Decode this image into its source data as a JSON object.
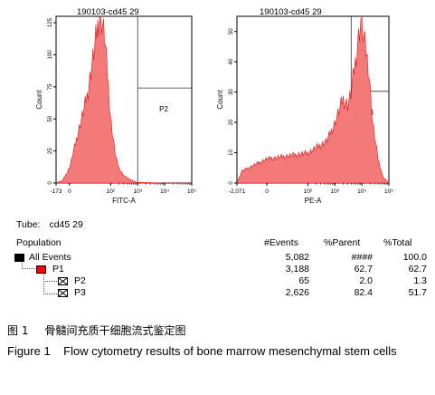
{
  "chart_data": [
    {
      "type": "area",
      "title": "190103-cd45 29",
      "xlabel": "FITC-A",
      "ylabel": "Count",
      "xlim": [
        -173,
        100000
      ],
      "x_scale": "biexponential",
      "ylim": [
        0,
        130
      ],
      "x_ticks": [
        "-173",
        "0",
        "10²",
        "10³",
        "10⁴",
        "10⁵"
      ],
      "y_ticks": [
        "0",
        "25",
        "50",
        "75",
        "100",
        "125"
      ],
      "gate": {
        "name": "P2",
        "from": 1000,
        "to": 100000
      },
      "x": [
        -173,
        -50,
        0,
        20,
        40,
        60,
        80,
        100,
        150,
        200,
        300,
        500,
        800,
        1000,
        2000,
        10000,
        100000
      ],
      "values": [
        0,
        2,
        12,
        70,
        135,
        115,
        80,
        50,
        22,
        12,
        6,
        3,
        1,
        0.5,
        0.3,
        0,
        0
      ]
    },
    {
      "type": "area",
      "title": "190103-cd45 29",
      "xlabel": "PE-A",
      "ylabel": "Count",
      "xlim": [
        -2071,
        100000
      ],
      "x_scale": "biexponential",
      "ylim": [
        0,
        55
      ],
      "x_ticks": [
        "-2,071",
        "0",
        "10²",
        "10³",
        "10⁴",
        "10⁵"
      ],
      "y_ticks": [
        "0",
        "10",
        "20",
        "30",
        "40",
        "50"
      ],
      "gate": {
        "name": "P3",
        "from": 4000,
        "to": 100000
      },
      "x": [
        -2071,
        -1000,
        0,
        100,
        500,
        1000,
        2000,
        3000,
        4000,
        6000,
        9000,
        12000,
        18000,
        25000,
        40000,
        60000,
        100000
      ],
      "values": [
        0,
        4,
        8,
        10,
        14,
        20,
        28,
        26,
        30,
        42,
        54,
        48,
        38,
        20,
        8,
        2,
        0
      ]
    }
  ],
  "tube": {
    "label": "Tube:",
    "value": "cd45 29"
  },
  "stats": {
    "headers": {
      "population": "Population",
      "events": "#Events",
      "parent": "%Parent",
      "total": "%Total"
    },
    "rows": [
      {
        "name": "All Events",
        "events": "5,082",
        "parent": "####",
        "total": "100.0",
        "color": "#000000"
      },
      {
        "name": "P1",
        "events": "3,188",
        "parent": "62.7",
        "total": "62.7",
        "color": "#ff0000"
      },
      {
        "name": "P2",
        "events": "65",
        "parent": "2.0",
        "total": "1.3",
        "color": "#ffffff"
      },
      {
        "name": "P3",
        "events": "2,626",
        "parent": "82.4",
        "total": "51.7",
        "color": "#ffffff"
      }
    ]
  },
  "caption": {
    "cn_number": "图 1",
    "cn_text": "骨髓间充质干细胞流式鉴定图",
    "en": "Figure 1    Flow cytometry results of bone marrow mesenchymal stem cells"
  },
  "colors": {
    "fill": "#f47a7a",
    "outline": "#e01818",
    "axis": "#000000"
  }
}
